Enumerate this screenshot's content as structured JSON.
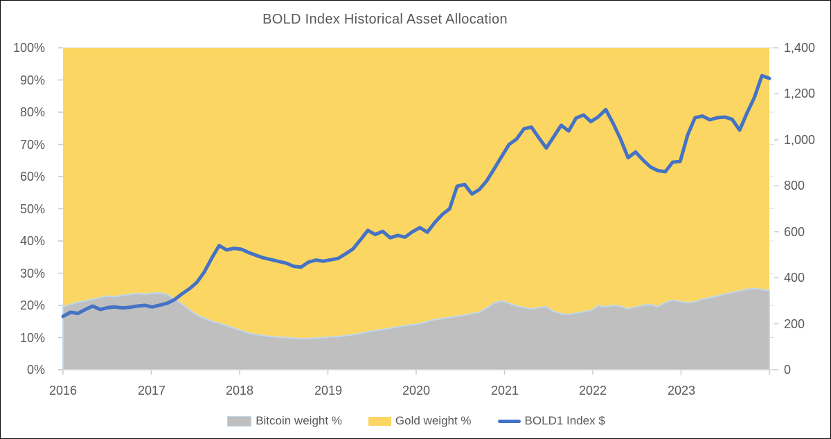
{
  "window": {
    "background_color": "#FFFFFF",
    "frame_border_color": "#0A0A0A"
  },
  "colors": {
    "bitcoin_area_fill": "#BFBFBF",
    "bitcoin_area_border": "#BDD7EE",
    "gold_area_fill": "#FCD663",
    "index_line": "#4472C4",
    "axis_text": "#595959",
    "axis_line": "#D9D9D9",
    "tick_mark": "#C6C9CC",
    "gridline": "#DEDEDE"
  },
  "chart_data": {
    "type": "area",
    "subtype": "stacked-area-with-line-overlay",
    "title": "BOLD Index Historical Asset Allocation",
    "sampling": "monthly, Jan 2016 - Dec 2023",
    "legend_position": "bottom",
    "grid": "horizontal, light, hidden behind areas",
    "x_axis": {
      "tick_labels": [
        "2016",
        "2017",
        "2018",
        "2019",
        "2020",
        "2021",
        "2022",
        "2023"
      ],
      "range_years": [
        2016,
        2024
      ]
    },
    "y_axis_left": {
      "unit": "percent",
      "range": [
        0,
        100
      ],
      "tick_values": [
        0,
        10,
        20,
        30,
        40,
        50,
        60,
        70,
        80,
        90,
        100
      ],
      "tick_labels": [
        "0%",
        "10%",
        "20%",
        "30%",
        "40%",
        "50%",
        "60%",
        "70%",
        "80%",
        "90%",
        "100%"
      ]
    },
    "y_axis_right": {
      "unit": "USD",
      "range": [
        0,
        1400
      ],
      "tick_values": [
        0,
        200,
        400,
        600,
        800,
        1000,
        1200,
        1400
      ],
      "tick_labels": [
        "0",
        "200",
        "400",
        "600",
        "800",
        "1,000",
        "1,200",
        "1,400"
      ]
    },
    "series": [
      {
        "name": "Bitcoin weight %",
        "type": "area",
        "axis": "left",
        "color": "#BFBFBF",
        "border_color": "#BDD7EE",
        "values": [
          19.5,
          20.3,
          21.0,
          21.4,
          21.9,
          22.4,
          22.9,
          22.7,
          23.1,
          23.4,
          23.7,
          23.5,
          23.8,
          23.9,
          23.4,
          22.0,
          20.4,
          18.6,
          17.0,
          16.0,
          15.1,
          14.4,
          13.7,
          12.9,
          12.1,
          11.4,
          10.9,
          10.6,
          10.3,
          10.1,
          10.0,
          9.8,
          9.7,
          9.7,
          9.8,
          10.0,
          10.2,
          10.3,
          10.6,
          10.9,
          11.3,
          11.8,
          12.2,
          12.5,
          12.9,
          13.3,
          13.7,
          14.0,
          14.3,
          15.0,
          15.6,
          15.9,
          16.3,
          16.6,
          17.0,
          17.4,
          17.9,
          19.2,
          20.8,
          21.4,
          20.6,
          19.8,
          19.3,
          18.9,
          19.3,
          19.6,
          18.1,
          17.4,
          17.2,
          17.6,
          18.0,
          18.4,
          19.9,
          19.6,
          20.0,
          19.7,
          18.9,
          19.5,
          20.0,
          20.3,
          19.6,
          20.9,
          21.6,
          21.2,
          20.8,
          21.1,
          21.9,
          22.4,
          22.9,
          23.5,
          24.0,
          24.5,
          25.0,
          25.2,
          24.9,
          24.6
        ]
      },
      {
        "name": "Gold weight %",
        "type": "area",
        "axis": "left",
        "color": "#FCD663",
        "stacked_on": "Bitcoin weight %",
        "values": [
          80.5,
          79.7,
          79.0,
          78.6,
          78.1,
          77.6,
          77.1,
          77.3,
          76.9,
          76.6,
          76.3,
          76.5,
          76.2,
          76.1,
          76.6,
          78.0,
          79.6,
          81.4,
          83.0,
          84.0,
          84.9,
          85.6,
          86.3,
          87.1,
          87.9,
          88.6,
          89.1,
          89.4,
          89.7,
          89.9,
          90.0,
          90.2,
          90.3,
          90.3,
          90.2,
          90.0,
          89.8,
          89.7,
          89.4,
          89.1,
          88.7,
          88.2,
          87.8,
          87.5,
          87.1,
          86.7,
          86.3,
          86.0,
          85.7,
          85.0,
          84.4,
          84.1,
          83.7,
          83.4,
          83.0,
          82.6,
          82.1,
          80.8,
          79.2,
          78.6,
          79.4,
          80.2,
          80.7,
          81.1,
          80.7,
          80.4,
          81.9,
          82.6,
          82.8,
          82.4,
          82.0,
          81.6,
          80.1,
          80.4,
          80.0,
          80.3,
          81.1,
          80.5,
          80.0,
          79.7,
          80.4,
          79.1,
          78.4,
          78.8,
          79.2,
          78.9,
          78.1,
          77.6,
          77.1,
          76.5,
          76.0,
          75.5,
          75.0,
          74.8,
          75.1,
          75.4
        ]
      },
      {
        "name": "BOLD1 Index $",
        "type": "line",
        "axis": "right",
        "color": "#4472C4",
        "values": [
          232,
          250,
          245,
          262,
          277,
          262,
          270,
          273,
          269,
          272,
          277,
          280,
          273,
          281,
          289,
          305,
          330,
          352,
          380,
          425,
          485,
          540,
          521,
          528,
          524,
          509,
          497,
          486,
          479,
          471,
          464,
          450,
          446,
          468,
          477,
          472,
          478,
          484,
          504,
          525,
          565,
          606,
          588,
          602,
          574,
          584,
          577,
          600,
          618,
          598,
          640,
          675,
          700,
          798,
          806,
          764,
          784,
          822,
          874,
          928,
          980,
          1003,
          1048,
          1055,
          1008,
          964,
          1013,
          1063,
          1038,
          1094,
          1108,
          1079,
          1100,
          1131,
          1071,
          1002,
          922,
          947,
          912,
          882,
          866,
          861,
          903,
          906,
          1020,
          1096,
          1103,
          1087,
          1096,
          1099,
          1089,
          1042,
          1117,
          1185,
          1279,
          1267
        ]
      }
    ]
  }
}
